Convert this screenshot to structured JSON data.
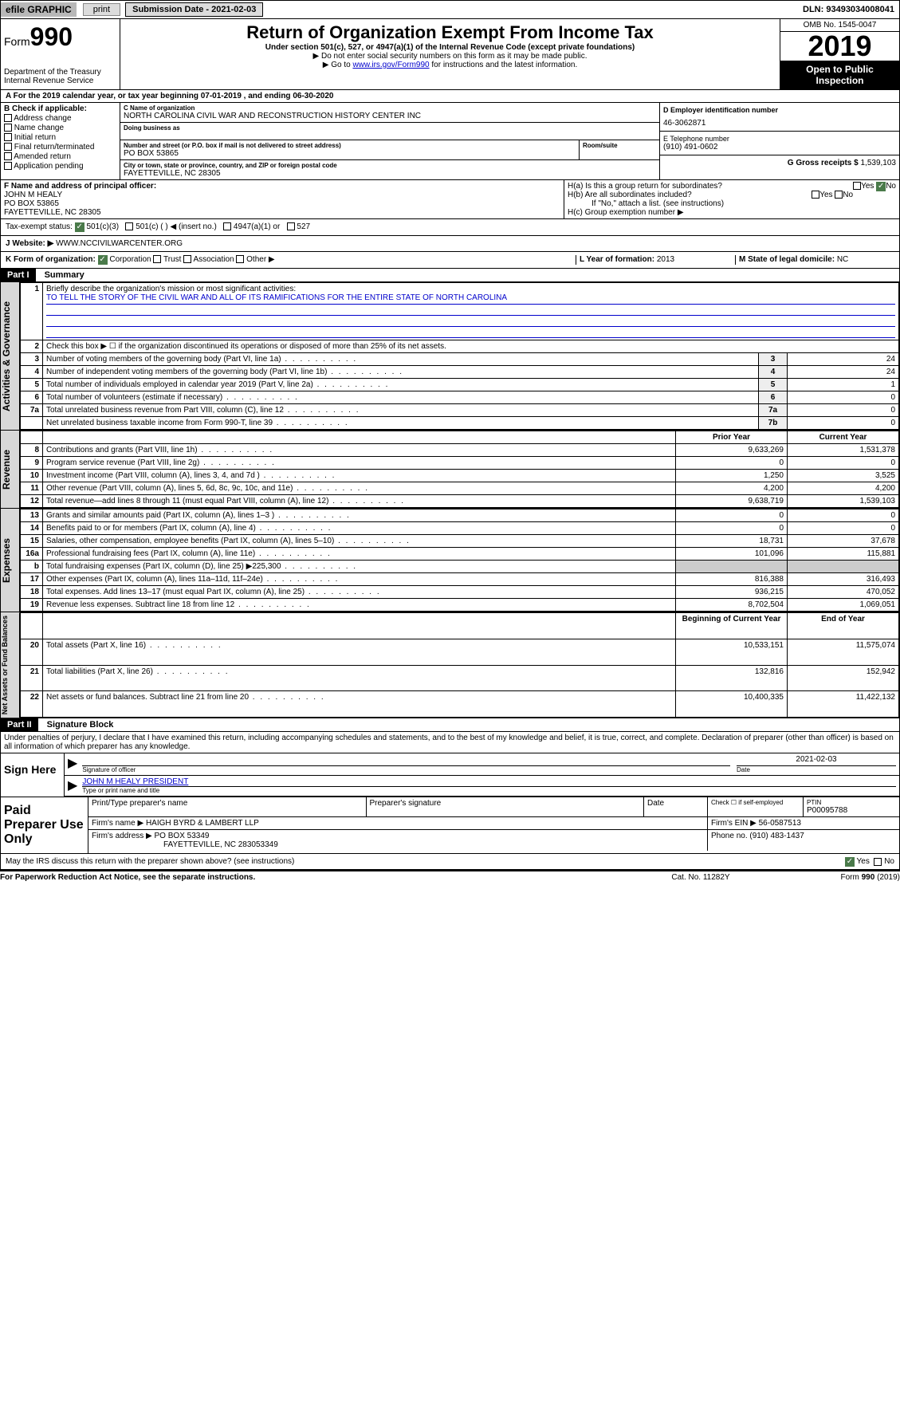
{
  "topbar": {
    "efile_prefix": "efile",
    "efile_graphic": "GRAPHIC",
    "print": "print",
    "submission_label": "Submission Date - 2021-02-03",
    "dln": "DLN: 93493034008041"
  },
  "header": {
    "form_label": "Form",
    "form_number": "990",
    "dept": "Department of the Treasury",
    "irs": "Internal Revenue Service",
    "title": "Return of Organization Exempt From Income Tax",
    "subtitle": "Under section 501(c), 527, or 4947(a)(1) of the Internal Revenue Code (except private foundations)",
    "note1": "▶ Do not enter social security numbers on this form as it may be made public.",
    "note2_pre": "▶ Go to ",
    "note2_link": "www.irs.gov/Form990",
    "note2_post": " for instructions and the latest information.",
    "omb": "OMB No. 1545-0047",
    "year": "2019",
    "open": "Open to Public Inspection"
  },
  "rowA": "A For the 2019 calendar year, or tax year beginning 07-01-2019   , and ending 06-30-2020",
  "colB": {
    "label": "B Check if applicable:",
    "items": [
      "Address change",
      "Name change",
      "Initial return",
      "Final return/terminated",
      "Amended return",
      "Application pending"
    ]
  },
  "colC": {
    "name_lbl": "C Name of organization",
    "name": "NORTH CAROLINA CIVIL WAR AND RECONSTRUCTION HISTORY CENTER INC",
    "dba_lbl": "Doing business as",
    "dba": "",
    "addr_lbl": "Number and street (or P.O. box if mail is not delivered to street address)",
    "addr": "PO BOX 53865",
    "room_lbl": "Room/suite",
    "city_lbl": "City or town, state or province, country, and ZIP or foreign postal code",
    "city": "FAYETTEVILLE, NC  28305"
  },
  "colDE": {
    "d_lbl": "D Employer identification number",
    "ein": "46-3062871",
    "e_lbl": "E Telephone number",
    "phone": "(910) 491-0602",
    "g_lbl": "G Gross receipts $",
    "gross": "1,539,103"
  },
  "rowF": {
    "f_lbl": "F Name and address of principal officer:",
    "name": "JOHN M HEALY",
    "addr1": "PO BOX 53865",
    "addr2": "FAYETTEVILLE, NC  28305"
  },
  "rowH": {
    "ha": "H(a) Is this a group return for subordinates?",
    "hb": "H(b) Are all subordinates included?",
    "hb_note": "If \"No,\" attach a list. (see instructions)",
    "hc": "H(c) Group exemption number ▶",
    "yes": "Yes",
    "no": "No"
  },
  "taxRow": {
    "lbl": "Tax-exempt status:",
    "opt1": "501(c)(3)",
    "opt2": "501(c) (  ) ◀ (insert no.)",
    "opt3": "4947(a)(1) or",
    "opt4": "527"
  },
  "webRow": {
    "lbl": "J  Website: ▶",
    "val": "WWW.NCCIVILWARCENTER.ORG"
  },
  "klRow": {
    "k_lbl": "K Form of organization:",
    "k_opts": [
      "Corporation",
      "Trust",
      "Association",
      "Other ▶"
    ],
    "l_lbl": "L Year of formation:",
    "l_val": "2013",
    "m_lbl": "M State of legal domicile:",
    "m_val": "NC"
  },
  "part1": {
    "hdr": "Part I",
    "title": "Summary"
  },
  "summary": {
    "q1": "Briefly describe the organization's mission or most significant activities:",
    "q1_val": "TO TELL THE STORY OF THE CIVIL WAR AND ALL OF ITS RAMIFICATIONS FOR THE ENTIRE STATE OF NORTH CAROLINA",
    "q2": "Check this box ▶ ☐ if the organization discontinued its operations or disposed of more than 25% of its net assets.",
    "rows_gov": [
      {
        "n": "3",
        "t": "Number of voting members of the governing body (Part VI, line 1a)",
        "c": "3",
        "v": "24"
      },
      {
        "n": "4",
        "t": "Number of independent voting members of the governing body (Part VI, line 1b)",
        "c": "4",
        "v": "24"
      },
      {
        "n": "5",
        "t": "Total number of individuals employed in calendar year 2019 (Part V, line 2a)",
        "c": "5",
        "v": "1"
      },
      {
        "n": "6",
        "t": "Total number of volunteers (estimate if necessary)",
        "c": "6",
        "v": "0"
      },
      {
        "n": "7a",
        "t": "Total unrelated business revenue from Part VIII, column (C), line 12",
        "c": "7a",
        "v": "0"
      },
      {
        "n": "",
        "t": "Net unrelated business taxable income from Form 990-T, line 39",
        "c": "7b",
        "v": "0"
      }
    ],
    "col_prior": "Prior Year",
    "col_current": "Current Year",
    "rows_rev": [
      {
        "n": "8",
        "t": "Contributions and grants (Part VIII, line 1h)",
        "p": "9,633,269",
        "c": "1,531,378"
      },
      {
        "n": "9",
        "t": "Program service revenue (Part VIII, line 2g)",
        "p": "0",
        "c": "0"
      },
      {
        "n": "10",
        "t": "Investment income (Part VIII, column (A), lines 3, 4, and 7d )",
        "p": "1,250",
        "c": "3,525"
      },
      {
        "n": "11",
        "t": "Other revenue (Part VIII, column (A), lines 5, 6d, 8c, 9c, 10c, and 11e)",
        "p": "4,200",
        "c": "4,200"
      },
      {
        "n": "12",
        "t": "Total revenue—add lines 8 through 11 (must equal Part VIII, column (A), line 12)",
        "p": "9,638,719",
        "c": "1,539,103"
      }
    ],
    "rows_exp": [
      {
        "n": "13",
        "t": "Grants and similar amounts paid (Part IX, column (A), lines 1–3 )",
        "p": "0",
        "c": "0"
      },
      {
        "n": "14",
        "t": "Benefits paid to or for members (Part IX, column (A), line 4)",
        "p": "0",
        "c": "0"
      },
      {
        "n": "15",
        "t": "Salaries, other compensation, employee benefits (Part IX, column (A), lines 5–10)",
        "p": "18,731",
        "c": "37,678"
      },
      {
        "n": "16a",
        "t": "Professional fundraising fees (Part IX, column (A), line 11e)",
        "p": "101,096",
        "c": "115,881"
      },
      {
        "n": "b",
        "t": "Total fundraising expenses (Part IX, column (D), line 25) ▶225,300",
        "p": "",
        "c": ""
      },
      {
        "n": "17",
        "t": "Other expenses (Part IX, column (A), lines 11a–11d, 11f–24e)",
        "p": "816,388",
        "c": "316,493"
      },
      {
        "n": "18",
        "t": "Total expenses. Add lines 13–17 (must equal Part IX, column (A), line 25)",
        "p": "936,215",
        "c": "470,052"
      },
      {
        "n": "19",
        "t": "Revenue less expenses. Subtract line 18 from line 12",
        "p": "8,702,504",
        "c": "1,069,051"
      }
    ],
    "col_begin": "Beginning of Current Year",
    "col_end": "End of Year",
    "rows_net": [
      {
        "n": "20",
        "t": "Total assets (Part X, line 16)",
        "p": "10,533,151",
        "c": "11,575,074"
      },
      {
        "n": "21",
        "t": "Total liabilities (Part X, line 26)",
        "p": "132,816",
        "c": "152,942"
      },
      {
        "n": "22",
        "t": "Net assets or fund balances. Subtract line 21 from line 20",
        "p": "10,400,335",
        "c": "11,422,132"
      }
    ]
  },
  "sideLabels": {
    "gov": "Activities & Governance",
    "rev": "Revenue",
    "exp": "Expenses",
    "net": "Net Assets or Fund Balances"
  },
  "part2": {
    "hdr": "Part II",
    "title": "Signature Block",
    "decl": "Under penalties of perjury, I declare that I have examined this return, including accompanying schedules and statements, and to the best of my knowledge and belief, it is true, correct, and complete. Declaration of preparer (other than officer) is based on all information of which preparer has any knowledge."
  },
  "sign": {
    "here": "Sign Here",
    "sig_lbl": "Signature of officer",
    "date_lbl": "Date",
    "date": "2021-02-03",
    "name": "JOHN M HEALY PRESIDENT",
    "name_lbl": "Type or print name and title"
  },
  "paid": {
    "lbl": "Paid Preparer Use Only",
    "h1": "Print/Type preparer's name",
    "h2": "Preparer's signature",
    "h3": "Date",
    "h4_chk": "Check ☐ if self-employed",
    "h5": "PTIN",
    "ptin": "P00095788",
    "firm_lbl": "Firm's name   ▶",
    "firm": "HAIGH BYRD & LAMBERT LLP",
    "ein_lbl": "Firm's EIN ▶",
    "ein": "56-0587513",
    "addr_lbl": "Firm's address ▶",
    "addr1": "PO BOX 53349",
    "addr2": "FAYETTEVILLE, NC  283053349",
    "phone_lbl": "Phone no.",
    "phone": "(910) 483-1437"
  },
  "discuss": {
    "q": "May the IRS discuss this return with the preparer shown above? (see instructions)",
    "yes": "Yes",
    "no": "No"
  },
  "footer": {
    "l": "For Paperwork Reduction Act Notice, see the separate instructions.",
    "m": "Cat. No. 11282Y",
    "r": "Form 990 (2019)"
  }
}
